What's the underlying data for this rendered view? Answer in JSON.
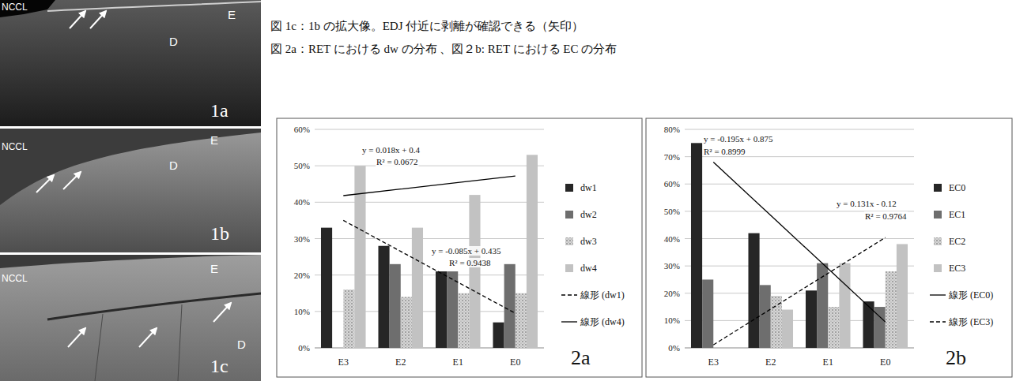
{
  "captions": [
    "図 1c：1b の拡大像。EDJ 付近に剥離が確認できる（矢印）",
    "図 2a：RET における dw の分布 、図２b: RET における EC の分布"
  ],
  "images": [
    {
      "label": "1a",
      "texts": [
        "NCCL",
        "E",
        "D"
      ]
    },
    {
      "label": "1b",
      "texts": [
        "NCCL",
        "E",
        "D"
      ]
    },
    {
      "label": "1c",
      "texts": [
        "NCCL",
        "E",
        "D"
      ]
    }
  ],
  "chart_data": [
    {
      "type": "bar",
      "title": "2a",
      "categories": [
        "E3",
        "E2",
        "E1",
        "E0"
      ],
      "series": [
        {
          "name": "dw1",
          "color": "#262626",
          "values": [
            33,
            28,
            21,
            7
          ]
        },
        {
          "name": "dw2",
          "color": "#6e6e6e",
          "values": [
            0,
            23,
            21,
            23
          ]
        },
        {
          "name": "dw3",
          "color": "#d6d6d6",
          "values": [
            16,
            14,
            15,
            15
          ]
        },
        {
          "name": "dw4",
          "color": "#c2c2c2",
          "values": [
            50,
            33,
            42,
            53
          ]
        },
        {
          "name": "線形 (dw1)",
          "type": "line",
          "color": "#000000",
          "line_style": "dashed",
          "values": [
            35,
            26.5,
            18,
            9.5
          ]
        },
        {
          "name": "線形 (dw4)",
          "type": "line",
          "color": "#000000",
          "line_style": "solid",
          "values": [
            41.8,
            43.6,
            45.4,
            47.2
          ]
        }
      ],
      "annotations": [
        "y = 0.018x + 0.4",
        "R² = 0.0672",
        "y = -0.085x + 0.435",
        "R² = 0.9438"
      ],
      "ylim": [
        0,
        60
      ],
      "yticks": [
        {
          "value": 0,
          "label": "0%"
        },
        {
          "value": 10,
          "label": "10%"
        },
        {
          "value": 20,
          "label": "20%"
        },
        {
          "value": 30,
          "label": "30%"
        },
        {
          "value": 40,
          "label": "40%"
        },
        {
          "value": 50,
          "label": "50%"
        },
        {
          "value": 60,
          "label": "60%"
        }
      ],
      "grid": true,
      "legend": "right"
    },
    {
      "type": "bar",
      "title": "2b",
      "categories": [
        "E3",
        "E2",
        "E1",
        "E0"
      ],
      "series": [
        {
          "name": "EC0",
          "color": "#262626",
          "values": [
            75,
            42,
            21,
            17
          ]
        },
        {
          "name": "EC1",
          "color": "#6e6e6e",
          "values": [
            25,
            23,
            31,
            15
          ]
        },
        {
          "name": "EC2",
          "color": "#d6d6d6",
          "values": [
            0,
            19,
            15,
            28
          ]
        },
        {
          "name": "EC3",
          "color": "#c2c2c2",
          "values": [
            0,
            14,
            31,
            38
          ]
        },
        {
          "name": "線形 (EC0)",
          "type": "line",
          "color": "#000000",
          "line_style": "solid",
          "values": [
            68,
            48.5,
            29,
            9.5
          ]
        },
        {
          "name": "線形 (EC3)",
          "type": "line",
          "color": "#000000",
          "line_style": "dashed",
          "values": [
            1.1,
            14.2,
            27.3,
            40.4
          ]
        }
      ],
      "annotations": [
        "y = -0.195x + 0.875",
        "R² = 0.8999",
        "y = 0.131x - 0.12",
        "R² = 0.9764"
      ],
      "ylim": [
        0,
        80
      ],
      "yticks": [
        {
          "value": 0,
          "label": "0%"
        },
        {
          "value": 10,
          "label": "10%"
        },
        {
          "value": 20,
          "label": "20%"
        },
        {
          "value": 30,
          "label": "30%"
        },
        {
          "value": 40,
          "label": "40%"
        },
        {
          "value": 50,
          "label": "50%"
        },
        {
          "value": 60,
          "label": "60%"
        },
        {
          "value": 70,
          "label": "70%"
        },
        {
          "value": 80,
          "label": "80%"
        }
      ],
      "grid": true,
      "legend": "right"
    }
  ]
}
